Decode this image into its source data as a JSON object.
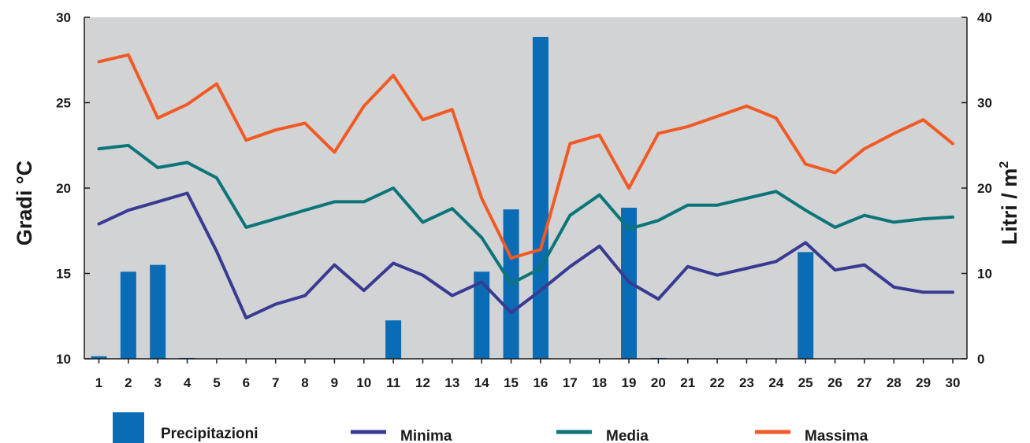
{
  "chart_data": {
    "type": "bar+line",
    "x": [
      1,
      2,
      3,
      4,
      5,
      6,
      7,
      8,
      9,
      10,
      11,
      12,
      13,
      14,
      15,
      16,
      17,
      18,
      19,
      20,
      21,
      22,
      23,
      24,
      25,
      26,
      27,
      28,
      29,
      30
    ],
    "y_left": {
      "label": "Gradi °C",
      "lim": [
        10,
        30
      ],
      "ticks": [
        10,
        15,
        20,
        25,
        30
      ]
    },
    "y_right": {
      "label": "Litri / m",
      "label_sup": "2",
      "lim": [
        0,
        40
      ],
      "ticks": [
        0,
        10,
        20,
        30,
        40
      ]
    },
    "grid": false,
    "legend_position": "bottom",
    "bars": {
      "name": "Precipitazioni",
      "color": "#0a6cb4",
      "axis": "right",
      "values": [
        0.3,
        10.2,
        11.0,
        0.1,
        0,
        0,
        0,
        0,
        0,
        0,
        4.5,
        0,
        0,
        10.2,
        17.5,
        37.7,
        0,
        0,
        17.7,
        0.1,
        0,
        0,
        0,
        0,
        12.5,
        0,
        0,
        0,
        0,
        0
      ]
    },
    "series": [
      {
        "name": "Minima",
        "color": "#393b93",
        "axis": "left",
        "values": [
          17.9,
          18.7,
          19.2,
          19.7,
          16.3,
          12.4,
          13.2,
          13.7,
          15.5,
          14.0,
          15.6,
          14.9,
          13.7,
          14.5,
          12.7,
          14.0,
          15.4,
          16.6,
          14.5,
          13.5,
          15.4,
          14.9,
          15.3,
          15.7,
          16.8,
          15.2,
          15.5,
          14.2,
          13.9,
          13.9
        ]
      },
      {
        "name": "Media",
        "color": "#0b7579",
        "axis": "left",
        "values": [
          22.3,
          22.5,
          21.2,
          21.5,
          20.6,
          17.7,
          18.2,
          18.7,
          19.2,
          19.2,
          20.0,
          18.0,
          18.8,
          17.1,
          14.4,
          15.3,
          18.4,
          19.6,
          17.6,
          18.1,
          19.0,
          19.0,
          19.4,
          19.8,
          18.7,
          17.7,
          18.4,
          18.0,
          18.2,
          18.3
        ]
      },
      {
        "name": "Massima",
        "color": "#f15a24",
        "axis": "left",
        "values": [
          27.4,
          27.8,
          24.1,
          24.9,
          26.1,
          22.8,
          23.4,
          23.8,
          22.1,
          24.8,
          26.6,
          24.0,
          24.6,
          19.4,
          15.9,
          16.4,
          22.6,
          23.1,
          20.0,
          23.2,
          23.6,
          24.2,
          24.8,
          24.1,
          21.4,
          20.9,
          22.3,
          23.2,
          24.0,
          22.6
        ]
      }
    ]
  }
}
